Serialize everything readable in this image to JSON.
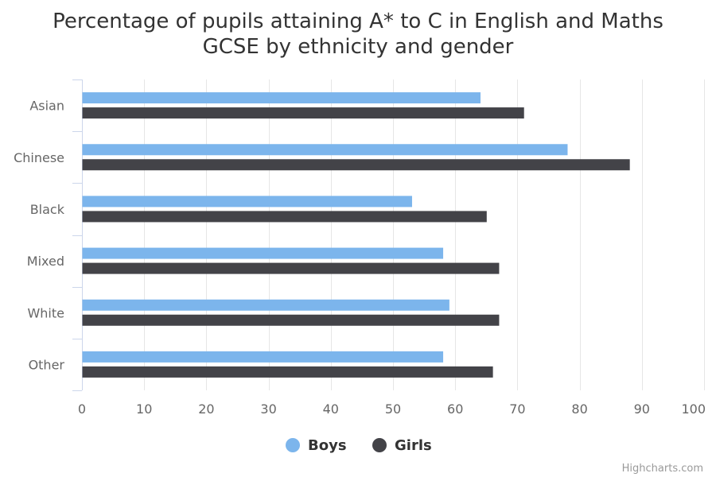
{
  "chart_data": {
    "type": "bar",
    "orientation": "horizontal",
    "title_lines": [
      "Percentage of pupils attaining A* to C in English and Maths",
      "GCSE by ethnicity and gender"
    ],
    "categories": [
      "Asian",
      "Chinese",
      "Black",
      "Mixed",
      "White",
      "Other"
    ],
    "series": [
      {
        "name": "Boys",
        "color": "#7cb5ec",
        "values": [
          64,
          78,
          53,
          58,
          59,
          58
        ]
      },
      {
        "name": "Girls",
        "color": "#434348",
        "values": [
          71,
          88,
          65,
          67,
          67,
          66
        ]
      }
    ],
    "xlim": [
      0,
      100
    ],
    "ticks": [
      0,
      10,
      20,
      30,
      40,
      50,
      60,
      70,
      80,
      90,
      100
    ],
    "grid": true,
    "legend_position": "bottom-center"
  },
  "credits": "Highcharts.com"
}
